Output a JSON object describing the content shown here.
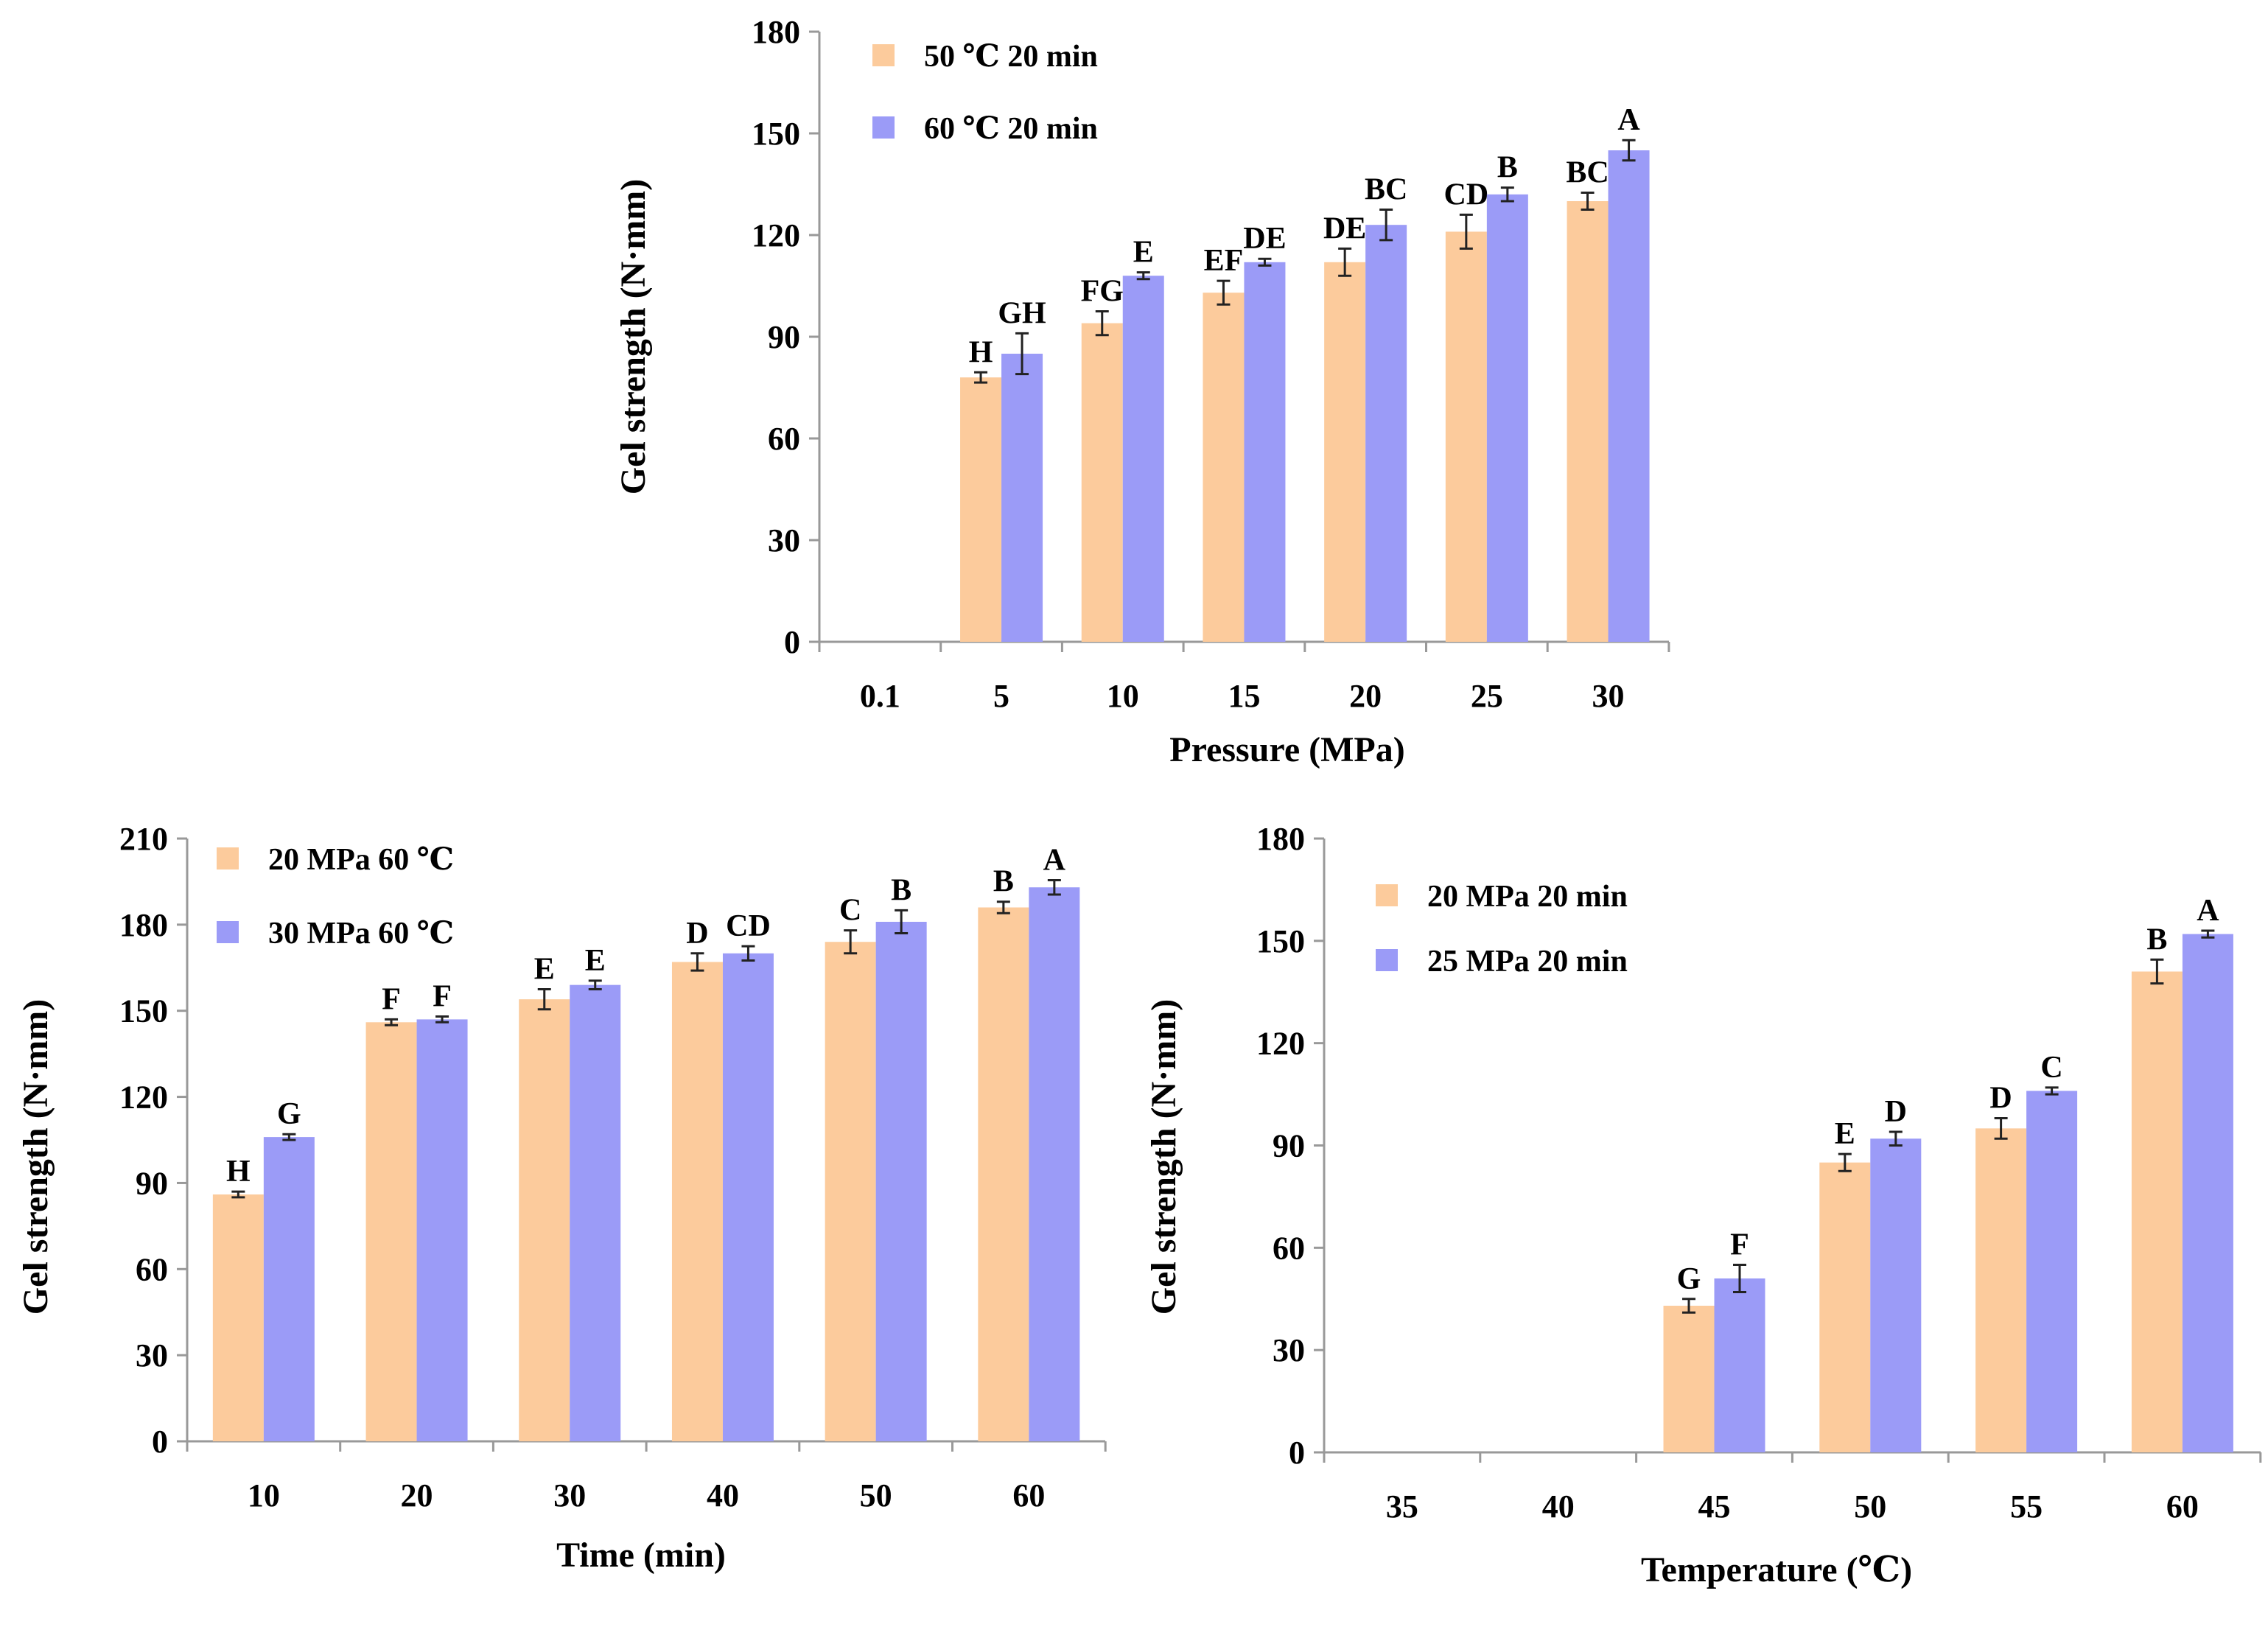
{
  "colors": {
    "series1": "#FCCB9C",
    "series2": "#9B9BF7"
  },
  "chart_data": [
    {
      "id": "pressure",
      "type": "bar",
      "title": "",
      "xlabel": "Pressure (MPa)",
      "ylabel": "Gel strength (N·mm)",
      "categories": [
        "0.1",
        "5",
        "10",
        "15",
        "20",
        "25",
        "30"
      ],
      "ylim": [
        0,
        180
      ],
      "yticks": [
        0,
        30,
        60,
        90,
        120,
        150,
        180
      ],
      "legend_position": "top-left",
      "series": [
        {
          "name": "50 ℃ 20 min",
          "values": [
            null,
            78,
            94,
            103,
            112,
            121,
            130
          ],
          "errors": [
            null,
            1.5,
            3.5,
            3.5,
            4,
            5,
            2.5
          ],
          "labels": [
            "",
            "H",
            "FG",
            "EF",
            "DE",
            "CD",
            "BC"
          ]
        },
        {
          "name": "60 ℃ 20 min",
          "values": [
            null,
            85,
            108,
            112,
            123,
            132,
            145
          ],
          "errors": [
            null,
            6,
            1,
            1,
            4.5,
            2,
            3
          ],
          "labels": [
            "",
            "GH",
            "E",
            "DE",
            "BC",
            "B",
            "A"
          ]
        }
      ]
    },
    {
      "id": "time",
      "type": "bar",
      "title": "",
      "xlabel": "Time (min)",
      "ylabel": "Gel strength (N·mm)",
      "categories": [
        "10",
        "20",
        "30",
        "40",
        "50",
        "60"
      ],
      "ylim": [
        0,
        210
      ],
      "yticks": [
        0,
        30,
        60,
        90,
        120,
        150,
        180,
        210
      ],
      "legend_position": "top-left",
      "series": [
        {
          "name": "20 MPa 60 ℃",
          "values": [
            86,
            146,
            154,
            167,
            174,
            186
          ],
          "errors": [
            1,
            1,
            3.5,
            3,
            4,
            2
          ],
          "labels": [
            "H",
            "F",
            "E",
            "D",
            "C",
            "B"
          ]
        },
        {
          "name": "30 MPa 60 ℃",
          "values": [
            106,
            147,
            159,
            170,
            181,
            193
          ],
          "errors": [
            1,
            1,
            1.5,
            2.5,
            4,
            2.5
          ],
          "labels": [
            "G",
            "F",
            "E",
            "CD",
            "B",
            "A"
          ]
        }
      ]
    },
    {
      "id": "temperature",
      "type": "bar",
      "title": "",
      "xlabel": "Temperature (℃)",
      "ylabel": "Gel strength (N·mm)",
      "categories": [
        "35",
        "40",
        "45",
        "50",
        "55",
        "60"
      ],
      "ylim": [
        0,
        180
      ],
      "yticks": [
        0,
        30,
        60,
        90,
        120,
        150,
        180
      ],
      "legend_position": "top-left",
      "series": [
        {
          "name": "20 MPa 20 min",
          "values": [
            null,
            null,
            43,
            85,
            95,
            141
          ],
          "errors": [
            null,
            null,
            2,
            2.5,
            3,
            3.5
          ],
          "labels": [
            "",
            "",
            "G",
            "E",
            "D",
            "B"
          ]
        },
        {
          "name": "25 MPa 20 min",
          "values": [
            null,
            null,
            51,
            92,
            106,
            152
          ],
          "errors": [
            null,
            null,
            4,
            2,
            1,
            1
          ],
          "labels": [
            "",
            "",
            "F",
            "D",
            "C",
            "A"
          ]
        }
      ]
    }
  ]
}
